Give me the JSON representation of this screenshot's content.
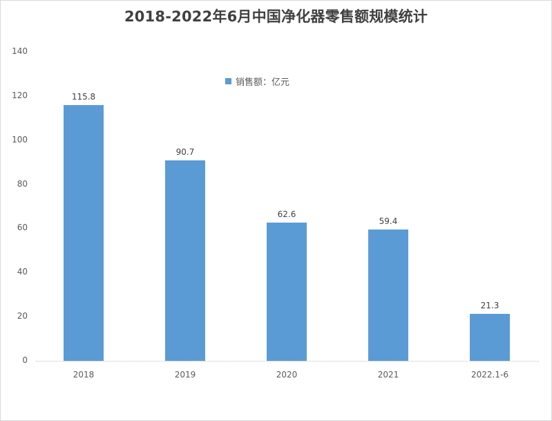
{
  "chart": {
    "title": "2018-2022年6月中国净化器零售额规模统计",
    "legend_label": "销售额：亿元",
    "bar_color": "#5b9bd5",
    "y_ticks": [
      "0",
      "20",
      "40",
      "60",
      "80",
      "100",
      "120",
      "140"
    ]
  },
  "chart_data": {
    "type": "bar",
    "title": "2018-2022年6月中国净化器零售额规模统计",
    "categories": [
      "2018",
      "2019",
      "2020",
      "2021",
      "2022.1-6"
    ],
    "series": [
      {
        "name": "销售额：亿元",
        "values": [
          115.8,
          90.7,
          62.6,
          59.4,
          21.3
        ]
      }
    ],
    "data_labels": [
      "115.8",
      "90.7",
      "62.6",
      "59.4",
      "21.3"
    ],
    "xlabel": "",
    "ylabel": "",
    "ylim": [
      0,
      140
    ],
    "y_ticks": [
      0,
      20,
      40,
      60,
      80,
      100,
      120,
      140
    ],
    "grid": false,
    "legend_position": "top-center"
  }
}
